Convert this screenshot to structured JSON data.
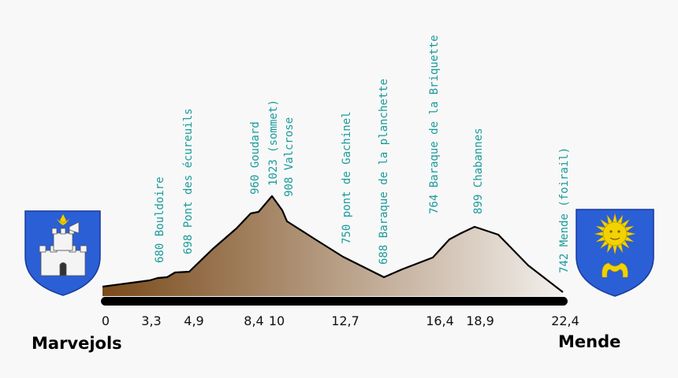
{
  "chart_data": {
    "type": "area",
    "x": [
      0,
      3.3,
      4.9,
      8.4,
      10,
      12.7,
      16.4,
      18.9,
      22.4
    ],
    "x_tick_labels": [
      "0",
      "3,3",
      "4,9",
      "8,4",
      "10",
      "12,7",
      "16,4",
      "18,9",
      "22,4"
    ],
    "xlim": [
      0,
      22.4
    ],
    "waypoints": [
      {
        "km": 3.3,
        "label": "680 Bouldoire"
      },
      {
        "km": 4.9,
        "label": "698 Pont des écureuils"
      },
      {
        "km": 8.4,
        "label": "960 Goudard"
      },
      {
        "km": 9.2,
        "label": "1023 (sommet)"
      },
      {
        "km": 10,
        "label": "908 Valcrose"
      },
      {
        "km": 12.7,
        "label": "750 pont de Gachinel"
      },
      {
        "km": 14.6,
        "label": "688 Baraque de la planchette"
      },
      {
        "km": 16.4,
        "label": "764 Baraque de la Briquette"
      },
      {
        "km": 18.9,
        "label": "899 Chabannes"
      },
      {
        "km": 22.4,
        "label": "742 Mende (foirail)"
      }
    ],
    "start_town": "Marvejols",
    "end_town": "Mende",
    "label_color": "#1a9a9a",
    "fill_gradient": [
      "#7a4a1a",
      "#f2efec"
    ],
    "line_color": "#000000"
  },
  "emblems": {
    "left": "marvejols-coat-of-arms-icon",
    "right": "mende-coat-of-arms-icon",
    "shield_color": "#2a5fd6"
  }
}
